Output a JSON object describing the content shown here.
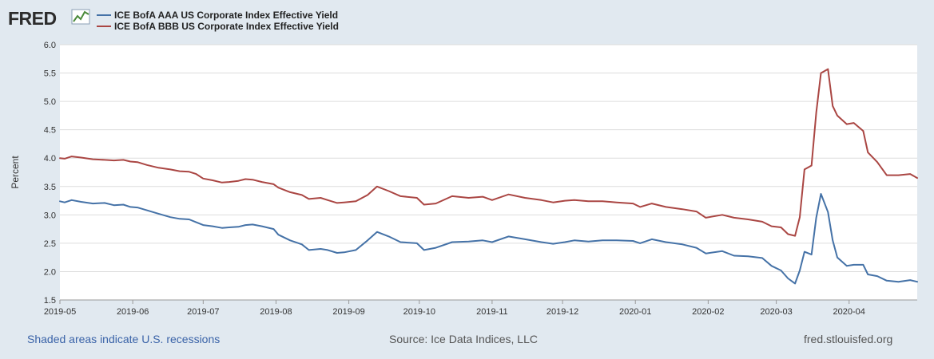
{
  "logo": {
    "text": "FRED"
  },
  "colors": {
    "series_aaa": "#4572a7",
    "series_bbb": "#aa4643",
    "plot_bg": "#ffffff",
    "page_bg": "#e1e9f0",
    "grid": "#dddddd"
  },
  "footer": {
    "note": "Shaded areas indicate U.S. recessions",
    "source": "Source: Ice Data Indices, LLC",
    "url": "fred.stlouisfed.org"
  },
  "chart_data": {
    "type": "line",
    "ylabel": "Percent",
    "ylim": [
      1.5,
      6.0
    ],
    "yticks": [
      "1.5",
      "2.0",
      "2.5",
      "3.0",
      "3.5",
      "4.0",
      "4.5",
      "5.0",
      "5.5",
      "6.0"
    ],
    "xlim": [
      "2019-05-01",
      "2020-04-30"
    ],
    "xticks": [
      "2019-05",
      "2019-06",
      "2019-07",
      "2019-08",
      "2019-09",
      "2019-10",
      "2019-11",
      "2019-12",
      "2020-01",
      "2020-02",
      "2020-03",
      "2020-04"
    ],
    "grid": true,
    "legend_position": "top-left",
    "series": [
      {
        "name": "ICE BofA AAA US Corporate Index Effective Yield",
        "points": [
          [
            "2019-05-01",
            3.24
          ],
          [
            "2019-05-03",
            3.22
          ],
          [
            "2019-05-06",
            3.26
          ],
          [
            "2019-05-10",
            3.23
          ],
          [
            "2019-05-15",
            3.2
          ],
          [
            "2019-05-20",
            3.21
          ],
          [
            "2019-05-24",
            3.17
          ],
          [
            "2019-05-28",
            3.18
          ],
          [
            "2019-05-31",
            3.14
          ],
          [
            "2019-06-03",
            3.13
          ],
          [
            "2019-06-07",
            3.08
          ],
          [
            "2019-06-12",
            3.02
          ],
          [
            "2019-06-17",
            2.96
          ],
          [
            "2019-06-21",
            2.93
          ],
          [
            "2019-06-25",
            2.92
          ],
          [
            "2019-06-28",
            2.87
          ],
          [
            "2019-07-01",
            2.82
          ],
          [
            "2019-07-05",
            2.8
          ],
          [
            "2019-07-09",
            2.77
          ],
          [
            "2019-07-12",
            2.78
          ],
          [
            "2019-07-16",
            2.79
          ],
          [
            "2019-07-19",
            2.82
          ],
          [
            "2019-07-22",
            2.83
          ],
          [
            "2019-07-26",
            2.8
          ],
          [
            "2019-07-31",
            2.75
          ],
          [
            "2019-08-02",
            2.65
          ],
          [
            "2019-08-07",
            2.55
          ],
          [
            "2019-08-12",
            2.48
          ],
          [
            "2019-08-15",
            2.38
          ],
          [
            "2019-08-20",
            2.4
          ],
          [
            "2019-08-23",
            2.38
          ],
          [
            "2019-08-27",
            2.33
          ],
          [
            "2019-08-30",
            2.34
          ],
          [
            "2019-09-04",
            2.38
          ],
          [
            "2019-09-09",
            2.55
          ],
          [
            "2019-09-13",
            2.7
          ],
          [
            "2019-09-18",
            2.62
          ],
          [
            "2019-09-23",
            2.52
          ],
          [
            "2019-09-30",
            2.5
          ],
          [
            "2019-10-03",
            2.38
          ],
          [
            "2019-10-08",
            2.42
          ],
          [
            "2019-10-15",
            2.52
          ],
          [
            "2019-10-22",
            2.53
          ],
          [
            "2019-10-28",
            2.55
          ],
          [
            "2019-11-01",
            2.52
          ],
          [
            "2019-11-08",
            2.62
          ],
          [
            "2019-11-15",
            2.57
          ],
          [
            "2019-11-22",
            2.52
          ],
          [
            "2019-11-27",
            2.49
          ],
          [
            "2019-12-02",
            2.52
          ],
          [
            "2019-12-06",
            2.55
          ],
          [
            "2019-12-12",
            2.53
          ],
          [
            "2019-12-18",
            2.55
          ],
          [
            "2019-12-24",
            2.55
          ],
          [
            "2019-12-31",
            2.54
          ],
          [
            "2020-01-03",
            2.5
          ],
          [
            "2020-01-08",
            2.57
          ],
          [
            "2020-01-14",
            2.52
          ],
          [
            "2020-01-21",
            2.48
          ],
          [
            "2020-01-27",
            2.42
          ],
          [
            "2020-01-31",
            2.32
          ],
          [
            "2020-02-07",
            2.36
          ],
          [
            "2020-02-12",
            2.28
          ],
          [
            "2020-02-18",
            2.27
          ],
          [
            "2020-02-24",
            2.24
          ],
          [
            "2020-02-28",
            2.1
          ],
          [
            "2020-03-03",
            2.02
          ],
          [
            "2020-03-06",
            1.88
          ],
          [
            "2020-03-09",
            1.79
          ],
          [
            "2020-03-11",
            2.02
          ],
          [
            "2020-03-13",
            2.35
          ],
          [
            "2020-03-16",
            2.3
          ],
          [
            "2020-03-18",
            2.95
          ],
          [
            "2020-03-20",
            3.37
          ],
          [
            "2020-03-23",
            3.05
          ],
          [
            "2020-03-25",
            2.55
          ],
          [
            "2020-03-27",
            2.25
          ],
          [
            "2020-03-31",
            2.1
          ],
          [
            "2020-04-03",
            2.12
          ],
          [
            "2020-04-07",
            2.12
          ],
          [
            "2020-04-09",
            1.95
          ],
          [
            "2020-04-13",
            1.92
          ],
          [
            "2020-04-17",
            1.84
          ],
          [
            "2020-04-22",
            1.82
          ],
          [
            "2020-04-27",
            1.85
          ],
          [
            "2020-04-30",
            1.82
          ]
        ]
      },
      {
        "name": "ICE BofA BBB US Corporate Index Effective Yield",
        "points": [
          [
            "2019-05-01",
            4.0
          ],
          [
            "2019-05-03",
            3.99
          ],
          [
            "2019-05-06",
            4.03
          ],
          [
            "2019-05-10",
            4.01
          ],
          [
            "2019-05-15",
            3.98
          ],
          [
            "2019-05-20",
            3.97
          ],
          [
            "2019-05-24",
            3.96
          ],
          [
            "2019-05-28",
            3.97
          ],
          [
            "2019-05-31",
            3.94
          ],
          [
            "2019-06-03",
            3.93
          ],
          [
            "2019-06-07",
            3.88
          ],
          [
            "2019-06-12",
            3.83
          ],
          [
            "2019-06-17",
            3.8
          ],
          [
            "2019-06-21",
            3.77
          ],
          [
            "2019-06-25",
            3.76
          ],
          [
            "2019-06-28",
            3.72
          ],
          [
            "2019-07-01",
            3.64
          ],
          [
            "2019-07-05",
            3.61
          ],
          [
            "2019-07-09",
            3.57
          ],
          [
            "2019-07-12",
            3.58
          ],
          [
            "2019-07-16",
            3.6
          ],
          [
            "2019-07-19",
            3.63
          ],
          [
            "2019-07-22",
            3.62
          ],
          [
            "2019-07-26",
            3.58
          ],
          [
            "2019-07-31",
            3.54
          ],
          [
            "2019-08-02",
            3.48
          ],
          [
            "2019-08-07",
            3.4
          ],
          [
            "2019-08-12",
            3.35
          ],
          [
            "2019-08-15",
            3.28
          ],
          [
            "2019-08-20",
            3.3
          ],
          [
            "2019-08-23",
            3.26
          ],
          [
            "2019-08-27",
            3.21
          ],
          [
            "2019-08-30",
            3.22
          ],
          [
            "2019-09-04",
            3.24
          ],
          [
            "2019-09-09",
            3.35
          ],
          [
            "2019-09-13",
            3.5
          ],
          [
            "2019-09-18",
            3.42
          ],
          [
            "2019-09-23",
            3.33
          ],
          [
            "2019-09-30",
            3.3
          ],
          [
            "2019-10-03",
            3.18
          ],
          [
            "2019-10-08",
            3.2
          ],
          [
            "2019-10-15",
            3.33
          ],
          [
            "2019-10-22",
            3.3
          ],
          [
            "2019-10-28",
            3.32
          ],
          [
            "2019-11-01",
            3.26
          ],
          [
            "2019-11-08",
            3.36
          ],
          [
            "2019-11-15",
            3.3
          ],
          [
            "2019-11-22",
            3.26
          ],
          [
            "2019-11-27",
            3.22
          ],
          [
            "2019-12-02",
            3.25
          ],
          [
            "2019-12-06",
            3.26
          ],
          [
            "2019-12-12",
            3.24
          ],
          [
            "2019-12-18",
            3.24
          ],
          [
            "2019-12-24",
            3.22
          ],
          [
            "2019-12-31",
            3.2
          ],
          [
            "2020-01-03",
            3.14
          ],
          [
            "2020-01-08",
            3.2
          ],
          [
            "2020-01-14",
            3.14
          ],
          [
            "2020-01-21",
            3.1
          ],
          [
            "2020-01-27",
            3.06
          ],
          [
            "2020-01-31",
            2.95
          ],
          [
            "2020-02-07",
            3.0
          ],
          [
            "2020-02-12",
            2.95
          ],
          [
            "2020-02-18",
            2.92
          ],
          [
            "2020-02-24",
            2.88
          ],
          [
            "2020-02-28",
            2.8
          ],
          [
            "2020-03-03",
            2.78
          ],
          [
            "2020-03-06",
            2.66
          ],
          [
            "2020-03-09",
            2.63
          ],
          [
            "2020-03-11",
            2.96
          ],
          [
            "2020-03-13",
            3.8
          ],
          [
            "2020-03-16",
            3.87
          ],
          [
            "2020-03-18",
            4.8
          ],
          [
            "2020-03-20",
            5.5
          ],
          [
            "2020-03-23",
            5.57
          ],
          [
            "2020-03-25",
            4.92
          ],
          [
            "2020-03-27",
            4.75
          ],
          [
            "2020-03-31",
            4.6
          ],
          [
            "2020-04-03",
            4.62
          ],
          [
            "2020-04-07",
            4.48
          ],
          [
            "2020-04-09",
            4.1
          ],
          [
            "2020-04-13",
            3.93
          ],
          [
            "2020-04-17",
            3.7
          ],
          [
            "2020-04-22",
            3.7
          ],
          [
            "2020-04-27",
            3.72
          ],
          [
            "2020-04-30",
            3.65
          ]
        ]
      }
    ]
  }
}
